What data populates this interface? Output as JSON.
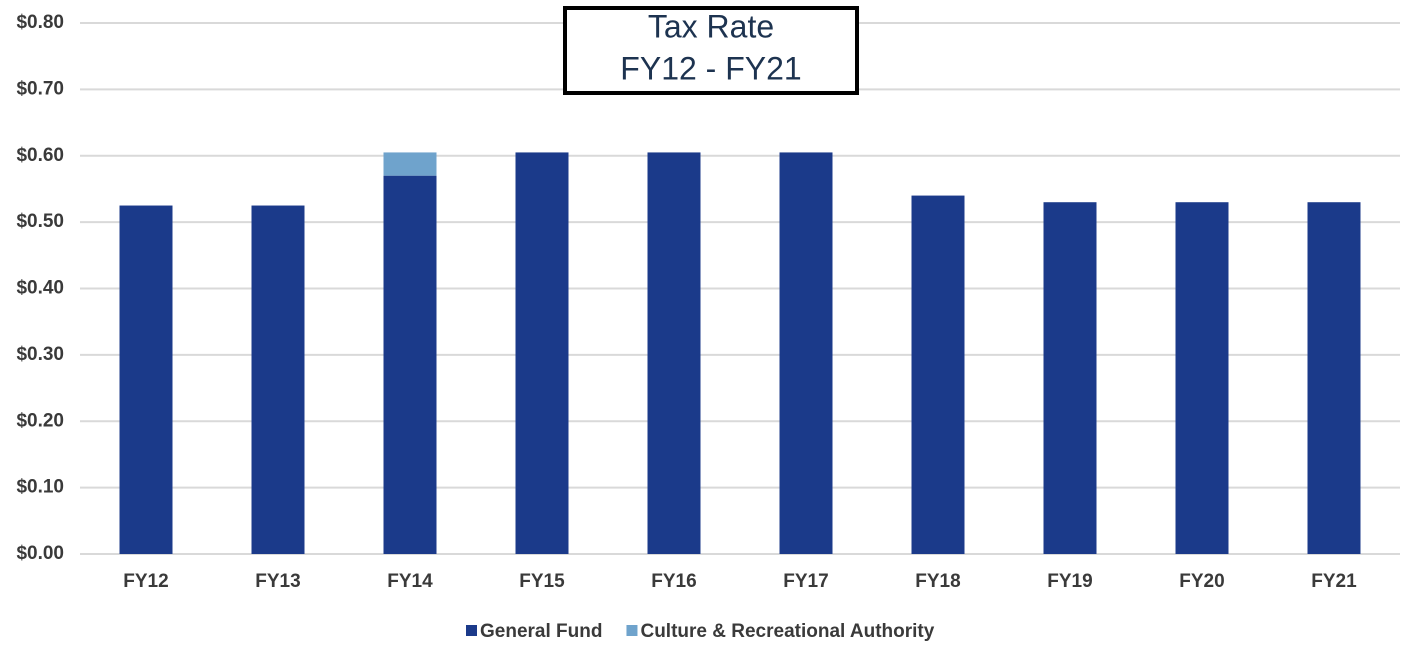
{
  "chart_data": {
    "type": "stacked_bar",
    "title": "Tax Rate",
    "subtitle": "FY12 - FY21",
    "categories": [
      "FY12",
      "FY13",
      "FY14",
      "FY15",
      "FY16",
      "FY17",
      "FY18",
      "FY19",
      "FY20",
      "FY21"
    ],
    "series": [
      {
        "name": "General Fund",
        "color": "#1b3a8a",
        "values": [
          0.525,
          0.525,
          0.57,
          0.605,
          0.605,
          0.605,
          0.54,
          0.53,
          0.53,
          0.53
        ]
      },
      {
        "name": "Culture & Recreational Authority",
        "color": "#6fa3cc",
        "values": [
          null,
          null,
          0.035,
          null,
          null,
          null,
          null,
          null,
          null,
          null
        ]
      }
    ],
    "ylim": [
      0,
      0.8
    ],
    "yticks": [
      {
        "value": 0,
        "label": "$0.00"
      },
      {
        "value": 0.1,
        "label": "$0.10"
      },
      {
        "value": 0.2,
        "label": "$0.20"
      },
      {
        "value": 0.3,
        "label": "$0.30"
      },
      {
        "value": 0.4,
        "label": "$0.40"
      },
      {
        "value": 0.5,
        "label": "$0.50"
      },
      {
        "value": 0.6,
        "label": "$0.60"
      },
      {
        "value": 0.7,
        "label": "$0.70"
      },
      {
        "value": 0.8,
        "label": "$0.80"
      }
    ],
    "grid": true,
    "legend": "bottom"
  }
}
